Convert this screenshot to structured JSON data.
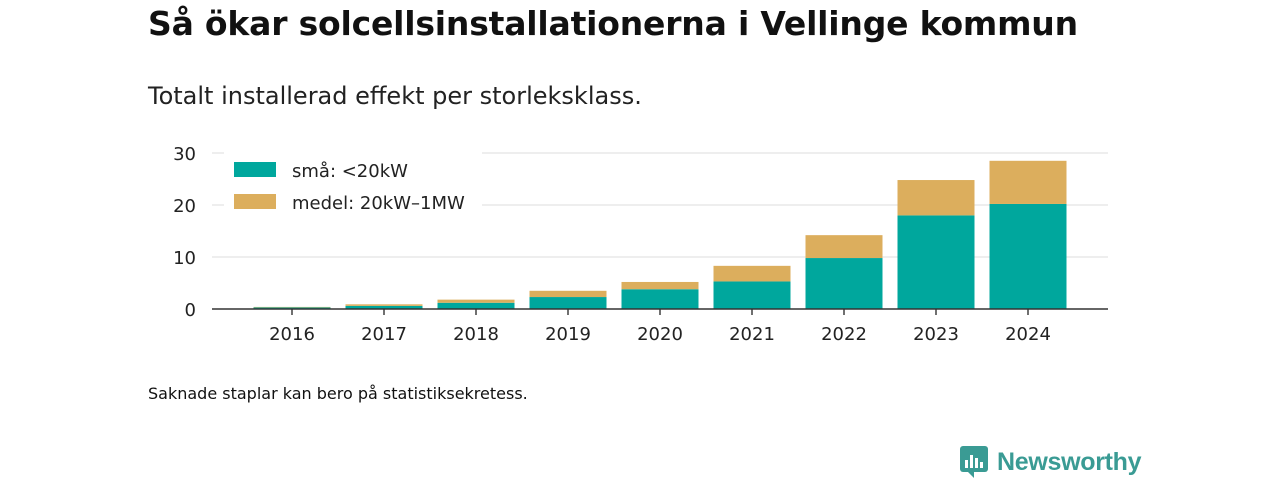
{
  "title": "Så ökar solcellsinstallationerna i Vellinge kommun",
  "subtitle": "Totalt installerad effekt per storleksklass.",
  "note": "Saknade staplar kan bero på statistiksekretess.",
  "brand": {
    "name": "Newsworthy",
    "icon": "newsworthy-logo-icon"
  },
  "colors": {
    "small": "#00a79d",
    "medium": "#dcae5d",
    "grid": "#dddddd",
    "axis": "#333333"
  },
  "chart_data": {
    "type": "bar",
    "stacked": true,
    "categories": [
      "2016",
      "2017",
      "2018",
      "2019",
      "2020",
      "2021",
      "2022",
      "2023",
      "2024"
    ],
    "series": [
      {
        "name": "små: <20kW",
        "color": "#00a79d",
        "values": [
          0.3,
          0.6,
          1.2,
          2.3,
          3.8,
          5.3,
          9.8,
          18.0,
          20.2
        ]
      },
      {
        "name": "medel: 20kW–1MW",
        "color": "#dcae5d",
        "values": [
          0.1,
          0.3,
          0.6,
          1.2,
          1.4,
          3.0,
          4.4,
          6.8,
          8.3
        ]
      }
    ],
    "yticks": [
      "0",
      "10",
      "20",
      "30"
    ],
    "ylim": [
      0,
      30
    ],
    "xlabel": "",
    "ylabel": "",
    "grid": true,
    "legend_position": "top-left"
  }
}
